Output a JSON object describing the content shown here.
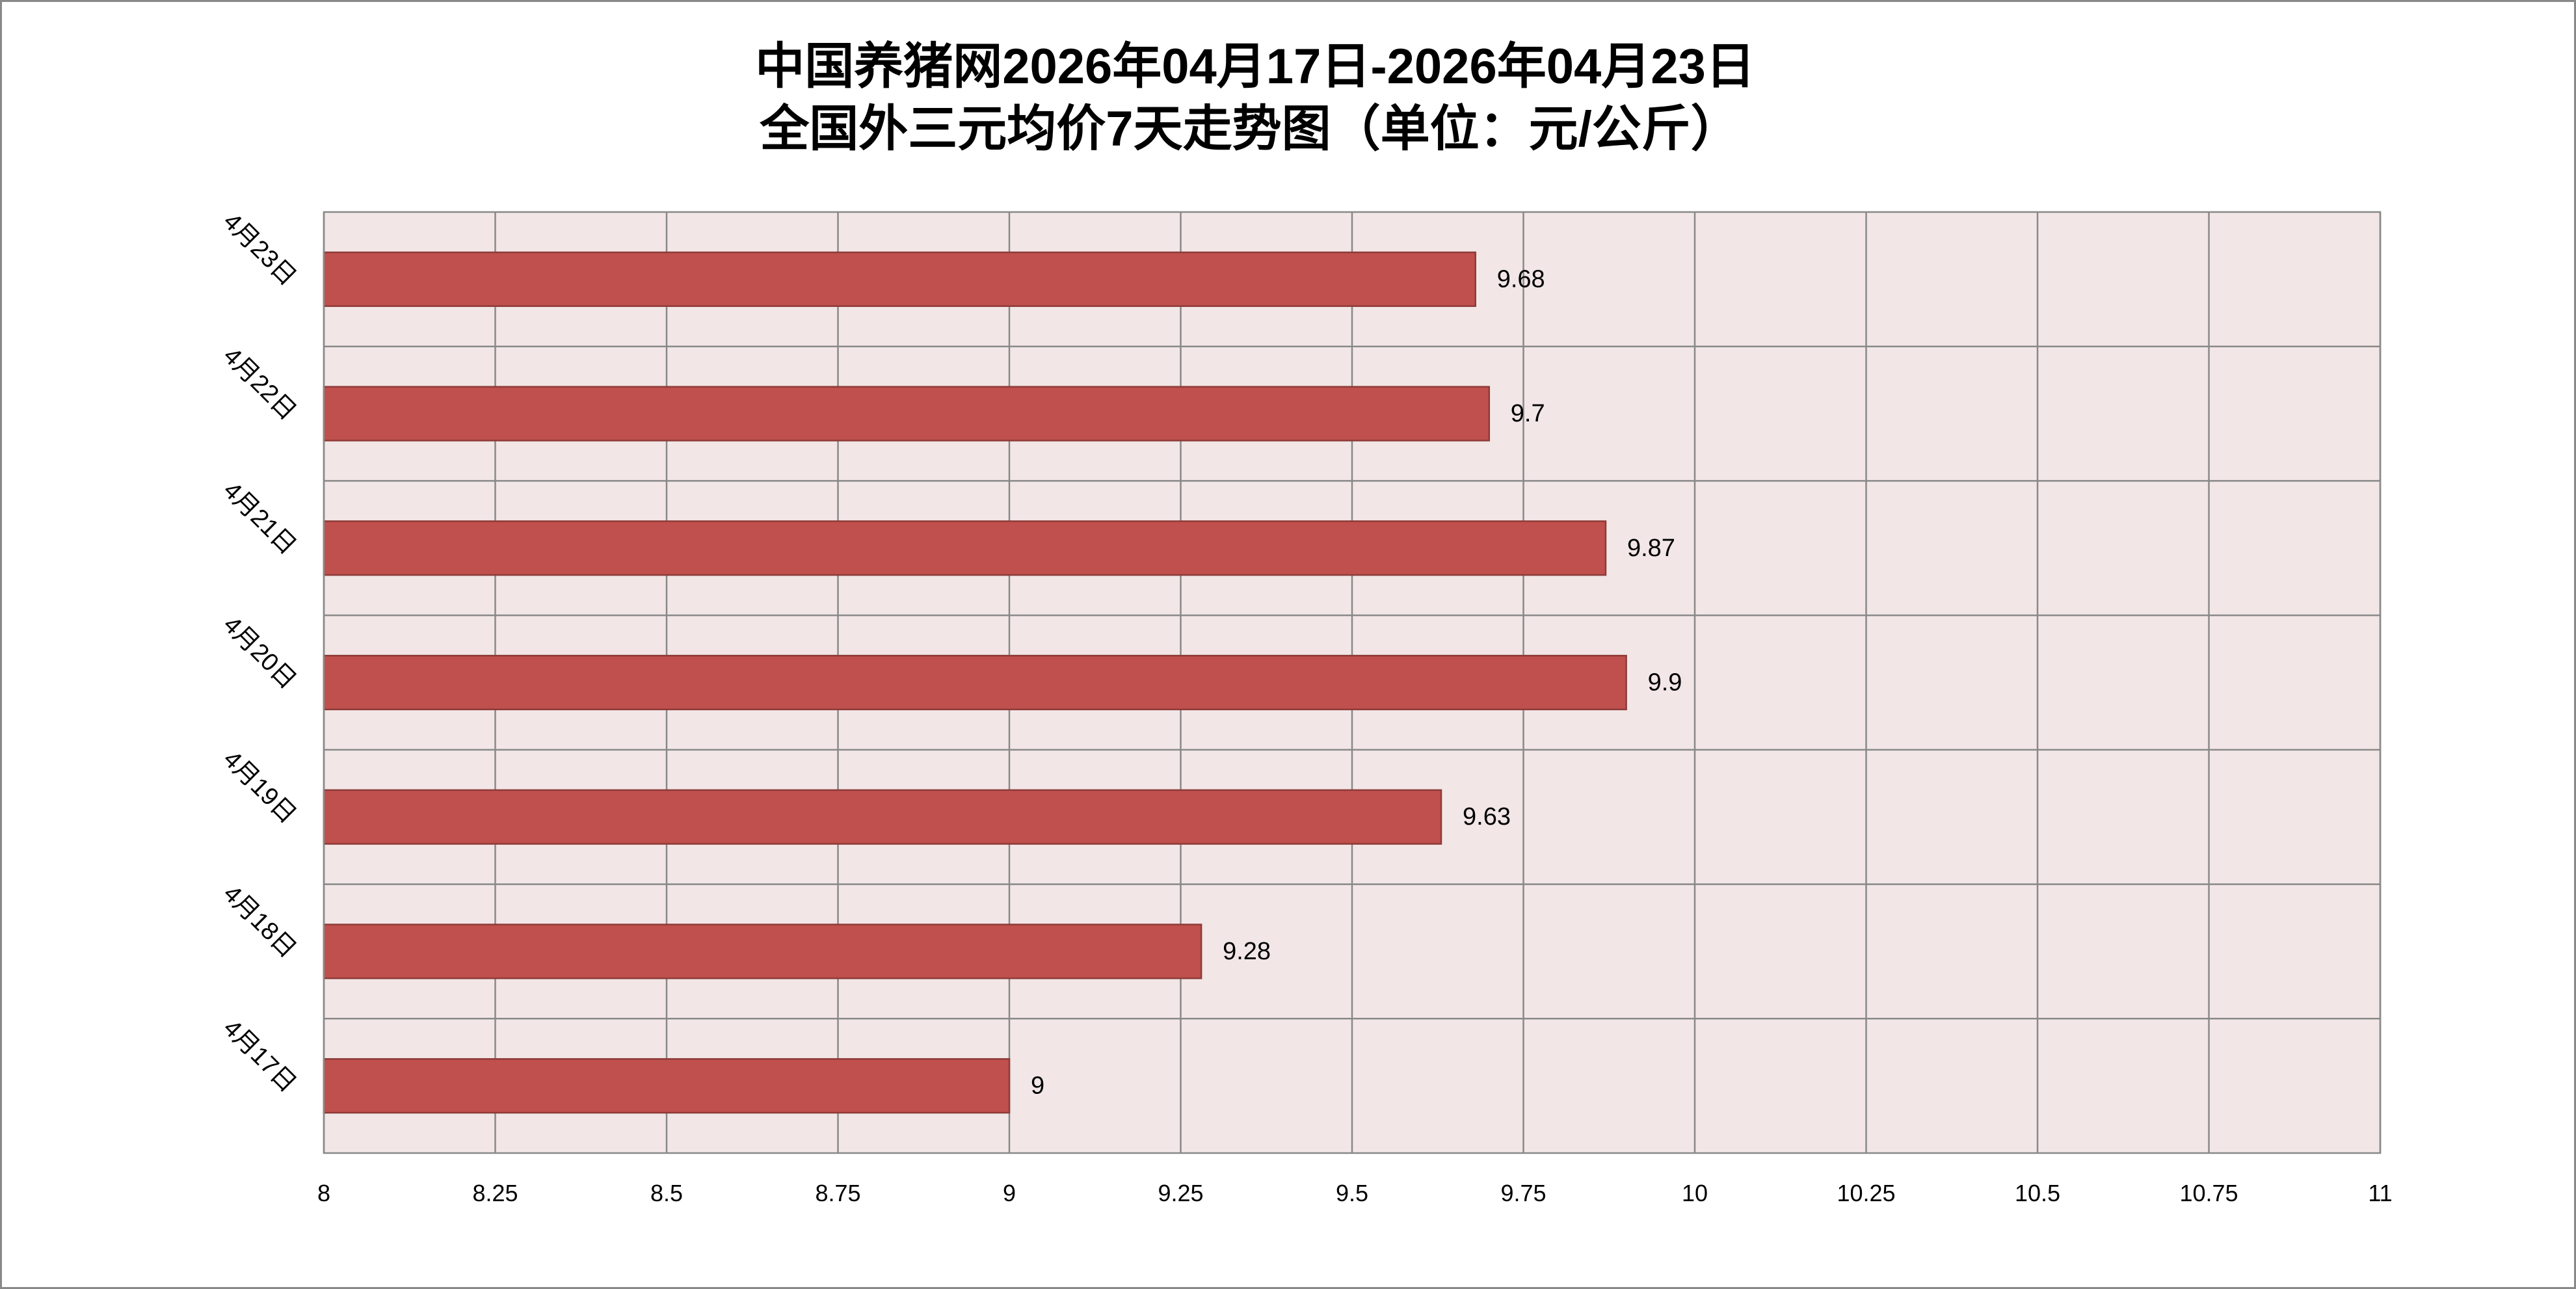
{
  "chart_data": {
    "type": "bar",
    "orientation": "horizontal",
    "title_lines": [
      "中国养猪网2026年04月17日-2026年04月23日",
      "全国外三元均价7天走势图（单位：元/公斤）"
    ],
    "categories": [
      "4月17日",
      "4月18日",
      "4月19日",
      "4月20日",
      "4月21日",
      "4月22日",
      "4月23日"
    ],
    "series": [
      {
        "values": [
          9,
          9.28,
          9.63,
          9.9,
          9.87,
          9.7,
          9.68
        ]
      }
    ],
    "data_labels": true,
    "xlim": [
      8,
      11
    ],
    "x_ticks": [
      "8",
      "8.25",
      "8.5",
      "8.75",
      "9",
      "9.25",
      "9.5",
      "9.75",
      "10",
      "10.25",
      "10.5",
      "10.75",
      "11"
    ],
    "grid": true,
    "colors": {
      "bar": "#C0504D",
      "bar_border": "#8E3B39",
      "plot_background": "#F2E6E6",
      "grid": "#898989",
      "chart_border": "#898989"
    }
  }
}
